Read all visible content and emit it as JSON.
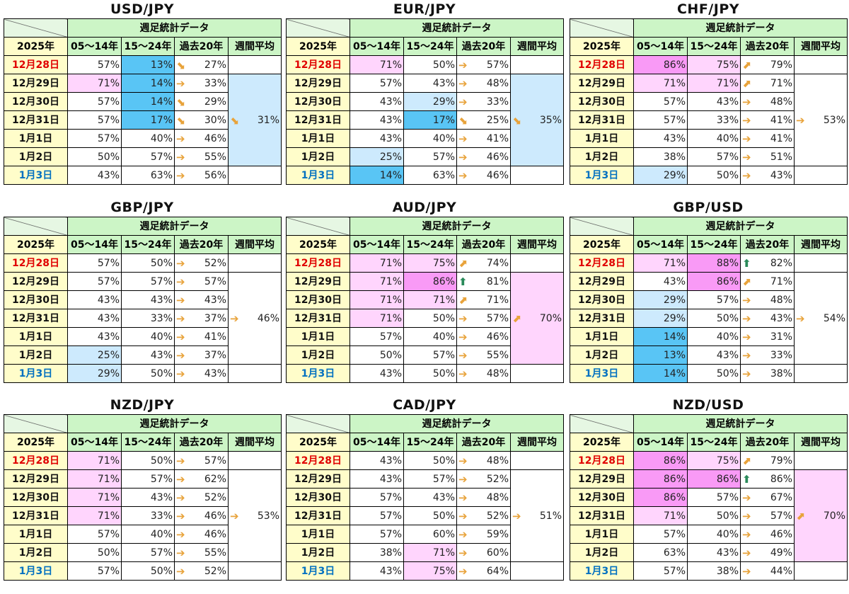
{
  "header": {
    "group": "週足統計データ",
    "year": "2025年",
    "cols": [
      "05～14年",
      "15～24年",
      "過去20年",
      "週間平均"
    ]
  },
  "dates": [
    "12月28日",
    "12月29日",
    "12月30日",
    "12月31日",
    "1月1日",
    "1月2日",
    "1月3日"
  ],
  "panels": [
    {
      "title": "USD/JPY",
      "rows": [
        {
          "a": "57%",
          "b": "13%",
          "arrow": "down",
          "c": "27%"
        },
        {
          "a": "71%",
          "b": "14%",
          "arrow": "flat",
          "c": "33%"
        },
        {
          "a": "57%",
          "b": "14%",
          "arrow": "down",
          "c": "29%"
        },
        {
          "a": "57%",
          "b": "17%",
          "arrow": "down",
          "c": "30%"
        },
        {
          "a": "57%",
          "b": "40%",
          "arrow": "flat",
          "c": "46%"
        },
        {
          "a": "50%",
          "b": "57%",
          "arrow": "flat",
          "c": "55%"
        },
        {
          "a": "43%",
          "b": "63%",
          "arrow": "flat",
          "c": "56%"
        }
      ],
      "weekly": {
        "arrow": "down",
        "value": "31%"
      }
    },
    {
      "title": "EUR/JPY",
      "rows": [
        {
          "a": "71%",
          "b": "50%",
          "arrow": "flat",
          "c": "57%"
        },
        {
          "a": "57%",
          "b": "43%",
          "arrow": "flat",
          "c": "48%"
        },
        {
          "a": "43%",
          "b": "29%",
          "arrow": "flat",
          "c": "33%"
        },
        {
          "a": "43%",
          "b": "17%",
          "arrow": "down",
          "c": "25%"
        },
        {
          "a": "43%",
          "b": "40%",
          "arrow": "flat",
          "c": "41%"
        },
        {
          "a": "25%",
          "b": "57%",
          "arrow": "flat",
          "c": "46%"
        },
        {
          "a": "14%",
          "b": "63%",
          "arrow": "flat",
          "c": "46%"
        }
      ],
      "weekly": {
        "arrow": "down",
        "value": "35%"
      }
    },
    {
      "title": "CHF/JPY",
      "rows": [
        {
          "a": "86%",
          "b": "75%",
          "arrow": "up",
          "c": "79%"
        },
        {
          "a": "71%",
          "b": "71%",
          "arrow": "up",
          "c": "71%"
        },
        {
          "a": "57%",
          "b": "43%",
          "arrow": "flat",
          "c": "48%"
        },
        {
          "a": "57%",
          "b": "33%",
          "arrow": "flat",
          "c": "41%"
        },
        {
          "a": "43%",
          "b": "40%",
          "arrow": "flat",
          "c": "41%"
        },
        {
          "a": "38%",
          "b": "57%",
          "arrow": "flat",
          "c": "51%"
        },
        {
          "a": "29%",
          "b": "50%",
          "arrow": "flat",
          "c": "43%"
        }
      ],
      "weekly": {
        "arrow": "flat",
        "value": "53%"
      }
    },
    {
      "title": "GBP/JPY",
      "rows": [
        {
          "a": "57%",
          "b": "50%",
          "arrow": "flat",
          "c": "52%"
        },
        {
          "a": "57%",
          "b": "57%",
          "arrow": "flat",
          "c": "57%"
        },
        {
          "a": "43%",
          "b": "43%",
          "arrow": "flat",
          "c": "43%"
        },
        {
          "a": "43%",
          "b": "33%",
          "arrow": "flat",
          "c": "37%"
        },
        {
          "a": "43%",
          "b": "40%",
          "arrow": "flat",
          "c": "41%"
        },
        {
          "a": "25%",
          "b": "43%",
          "arrow": "flat",
          "c": "37%"
        },
        {
          "a": "29%",
          "b": "50%",
          "arrow": "flat",
          "c": "43%"
        }
      ],
      "weekly": {
        "arrow": "flat",
        "value": "46%"
      }
    },
    {
      "title": "AUD/JPY",
      "rows": [
        {
          "a": "71%",
          "b": "75%",
          "arrow": "up",
          "c": "74%"
        },
        {
          "a": "71%",
          "b": "86%",
          "arrow": "strong",
          "c": "81%"
        },
        {
          "a": "71%",
          "b": "71%",
          "arrow": "up",
          "c": "71%"
        },
        {
          "a": "71%",
          "b": "50%",
          "arrow": "flat",
          "c": "57%"
        },
        {
          "a": "57%",
          "b": "40%",
          "arrow": "flat",
          "c": "46%"
        },
        {
          "a": "50%",
          "b": "57%",
          "arrow": "flat",
          "c": "55%"
        },
        {
          "a": "43%",
          "b": "50%",
          "arrow": "flat",
          "c": "48%"
        }
      ],
      "weekly": {
        "arrow": "up",
        "value": "70%"
      }
    },
    {
      "title": "GBP/USD",
      "rows": [
        {
          "a": "71%",
          "b": "88%",
          "arrow": "strong",
          "c": "82%"
        },
        {
          "a": "43%",
          "b": "86%",
          "arrow": "up",
          "c": "71%"
        },
        {
          "a": "29%",
          "b": "57%",
          "arrow": "flat",
          "c": "48%"
        },
        {
          "a": "29%",
          "b": "50%",
          "arrow": "flat",
          "c": "43%"
        },
        {
          "a": "14%",
          "b": "40%",
          "arrow": "flat",
          "c": "31%"
        },
        {
          "a": "13%",
          "b": "43%",
          "arrow": "flat",
          "c": "33%"
        },
        {
          "a": "14%",
          "b": "50%",
          "arrow": "flat",
          "c": "38%"
        }
      ],
      "weekly": {
        "arrow": "flat",
        "value": "54%"
      }
    },
    {
      "title": "NZD/JPY",
      "rows": [
        {
          "a": "71%",
          "b": "50%",
          "arrow": "flat",
          "c": "57%"
        },
        {
          "a": "71%",
          "b": "57%",
          "arrow": "flat",
          "c": "62%"
        },
        {
          "a": "71%",
          "b": "43%",
          "arrow": "flat",
          "c": "52%"
        },
        {
          "a": "71%",
          "b": "33%",
          "arrow": "flat",
          "c": "46%"
        },
        {
          "a": "57%",
          "b": "40%",
          "arrow": "flat",
          "c": "46%"
        },
        {
          "a": "50%",
          "b": "57%",
          "arrow": "flat",
          "c": "55%"
        },
        {
          "a": "57%",
          "b": "50%",
          "arrow": "flat",
          "c": "52%"
        }
      ],
      "weekly": {
        "arrow": "flat",
        "value": "53%"
      }
    },
    {
      "title": "CAD/JPY",
      "rows": [
        {
          "a": "43%",
          "b": "50%",
          "arrow": "flat",
          "c": "48%"
        },
        {
          "a": "43%",
          "b": "57%",
          "arrow": "flat",
          "c": "52%"
        },
        {
          "a": "57%",
          "b": "43%",
          "arrow": "flat",
          "c": "48%"
        },
        {
          "a": "57%",
          "b": "50%",
          "arrow": "flat",
          "c": "52%"
        },
        {
          "a": "57%",
          "b": "60%",
          "arrow": "flat",
          "c": "59%"
        },
        {
          "a": "38%",
          "b": "71%",
          "arrow": "flat",
          "c": "60%"
        },
        {
          "a": "43%",
          "b": "75%",
          "arrow": "flat",
          "c": "64%"
        }
      ],
      "weekly": {
        "arrow": "flat",
        "value": "51%"
      }
    },
    {
      "title": "NZD/USD",
      "rows": [
        {
          "a": "86%",
          "b": "75%",
          "arrow": "up",
          "c": "79%"
        },
        {
          "a": "86%",
          "b": "86%",
          "arrow": "strong",
          "c": "86%"
        },
        {
          "a": "86%",
          "b": "57%",
          "arrow": "flat",
          "c": "67%"
        },
        {
          "a": "71%",
          "b": "50%",
          "arrow": "flat",
          "c": "57%"
        },
        {
          "a": "57%",
          "b": "40%",
          "arrow": "flat",
          "c": "46%"
        },
        {
          "a": "63%",
          "b": "43%",
          "arrow": "flat",
          "c": "49%"
        },
        {
          "a": "57%",
          "b": "38%",
          "arrow": "flat",
          "c": "44%"
        }
      ],
      "weekly": {
        "arrow": "up",
        "value": "70%"
      }
    }
  ],
  "colors": {
    "lightBlue": "#cdeafd",
    "blue": "#59c5f5",
    "lightPink": "#ffd5fd",
    "pink": "#f99af6",
    "header": "#ccf5c6",
    "dateCol": "#fffdca",
    "red": "#e00000",
    "blueText": "#0070c0"
  }
}
